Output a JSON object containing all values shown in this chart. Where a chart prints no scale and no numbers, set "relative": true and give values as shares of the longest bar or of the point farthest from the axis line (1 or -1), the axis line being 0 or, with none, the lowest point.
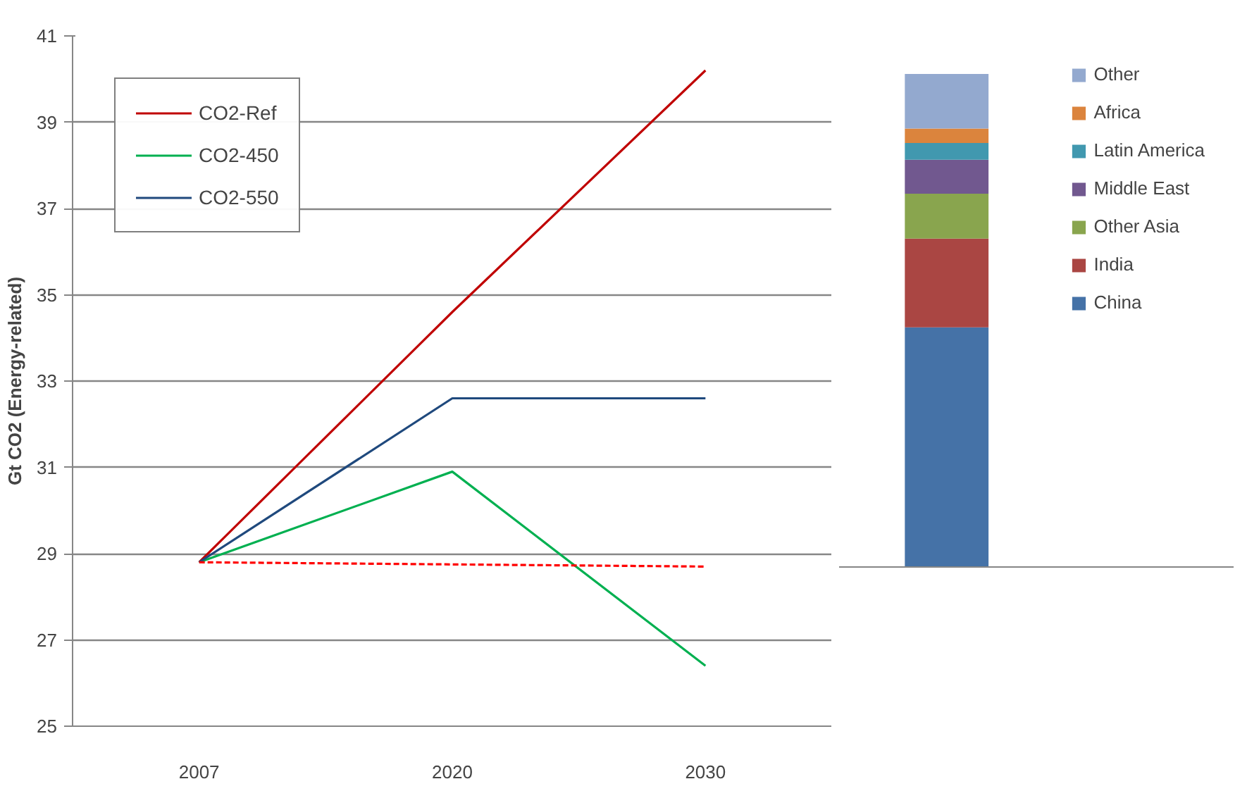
{
  "chart_data": [
    {
      "type": "line",
      "categories": [
        "2007",
        "2020",
        "2030"
      ],
      "ylabel": "Gt CO2 (Energy-related)",
      "ylim": [
        25,
        41
      ],
      "yticks": [
        25,
        27,
        29,
        31,
        33,
        35,
        37,
        39,
        41
      ],
      "grid": "y",
      "legend": "top left",
      "series": [
        {
          "name": "CO2-Ref",
          "color": "#c00000",
          "values": [
            28.8,
            34.6,
            40.2
          ]
        },
        {
          "name": "CO2-450",
          "color": "#00b050",
          "values": [
            28.8,
            30.9,
            26.4
          ]
        },
        {
          "name": "CO2-550",
          "color": "#1f497d",
          "values": [
            28.8,
            32.6,
            32.6
          ]
        },
        {
          "color": "#ff0000",
          "line_style": "dashed",
          "values": [
            28.8,
            28.75,
            28.7
          ]
        }
      ]
    },
    {
      "type": "bar",
      "stacked": true,
      "relative": true,
      "categories": [
        null
      ],
      "legend": "top right",
      "series": [
        {
          "name": "China",
          "color": "#4572a7",
          "values": [
            0.486
          ]
        },
        {
          "name": "India",
          "color": "#aa4643",
          "values": [
            0.18
          ]
        },
        {
          "name": "Other Asia",
          "color": "#89a54e",
          "values": [
            0.091
          ]
        },
        {
          "name": "Middle East",
          "color": "#71588f",
          "values": [
            0.069
          ]
        },
        {
          "name": "Latin America",
          "color": "#4198af",
          "values": [
            0.034
          ]
        },
        {
          "name": "Africa",
          "color": "#db843d",
          "values": [
            0.029
          ]
        },
        {
          "name": "Other",
          "color": "#93a9cf",
          "values": [
            0.111
          ]
        }
      ]
    }
  ]
}
